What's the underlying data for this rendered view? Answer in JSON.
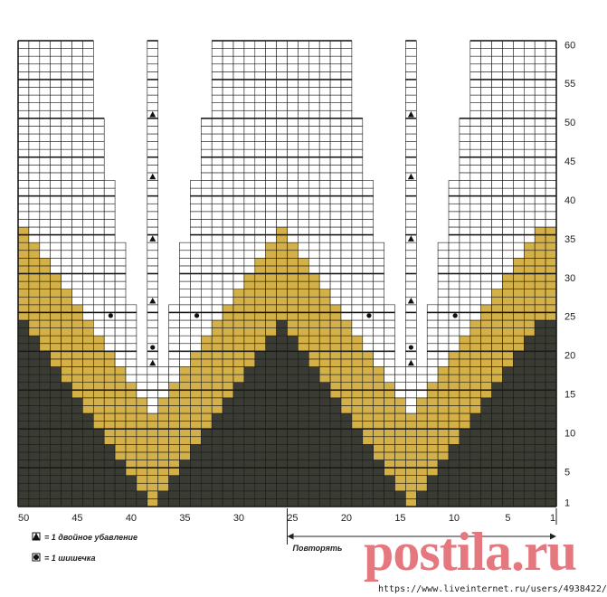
{
  "grid": {
    "stitches": 50,
    "rows": 60
  },
  "row_labels": [
    "1",
    "5",
    "10",
    "15",
    "20",
    "25",
    "30",
    "35",
    "40",
    "45",
    "50",
    "55",
    "60"
  ],
  "column_labels": [
    "50",
    "45",
    "40",
    "35",
    "30",
    "25",
    "20",
    "15",
    "10",
    "5",
    "1"
  ],
  "repeat": {
    "label": "Повторять",
    "from_stitch": 25,
    "to_stitch": 1
  },
  "legend": [
    {
      "icon": "triangle-icon",
      "text": "= 1 двойное убавление"
    },
    {
      "icon": "dot-icon",
      "text": "= 1 шишечка"
    }
  ],
  "colors": {
    "dark": "#3a3c34",
    "yellow": "#d3b048",
    "white": "#ffffff",
    "grid": "#1a1a1a"
  },
  "watermark": {
    "logo": "postila.ru",
    "url": "https://www.liveinternet.ru/users/4938422/"
  }
}
